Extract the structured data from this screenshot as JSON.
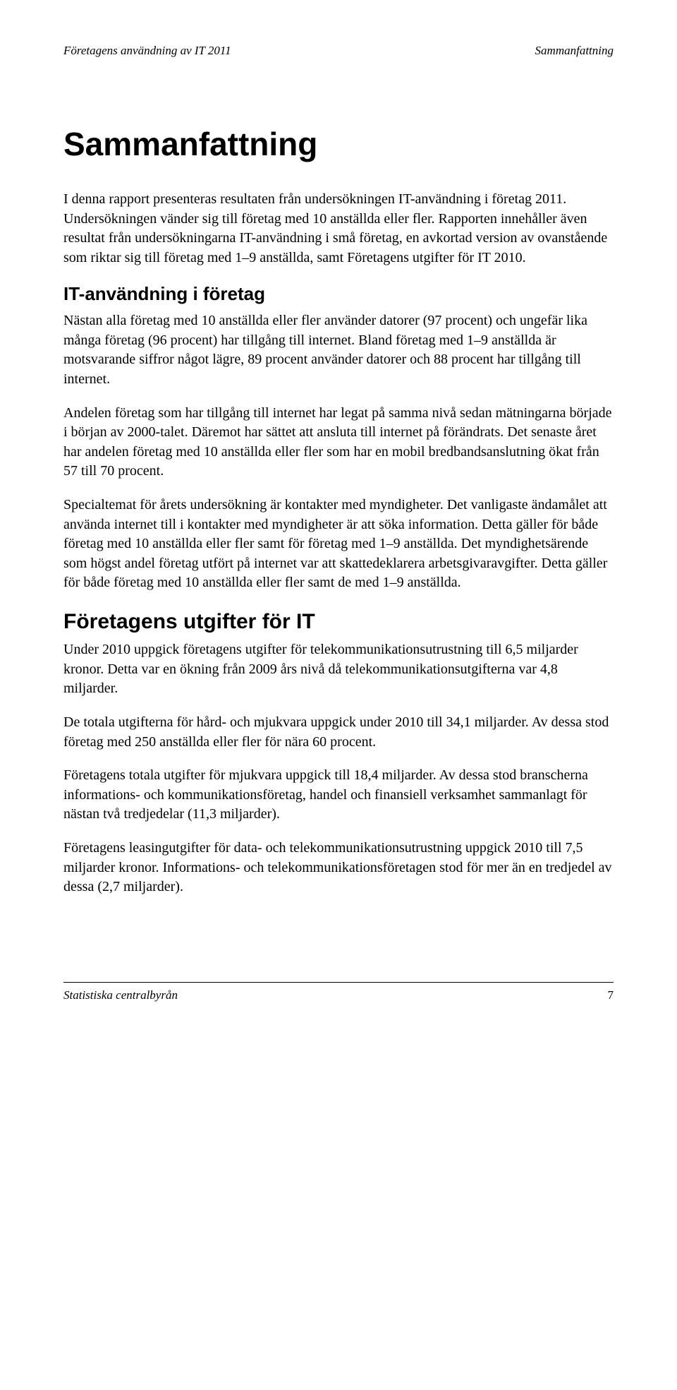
{
  "header": {
    "left": "Företagens användning av IT 2011",
    "right": "Sammanfattning"
  },
  "title": "Sammanfattning",
  "intro": "I denna rapport presenteras resultaten från undersökningen IT-användning i företag 2011. Undersökningen vänder sig till företag med 10 anställda eller fler. Rapporten innehåller även resultat från undersökningarna IT-användning i små företag, en avkortad version av ovanstående som riktar sig till företag med 1–9 anställda, samt Företagens utgifter för IT 2010.",
  "section1": {
    "heading": "IT-användning i företag",
    "p1": "Nästan alla företag med 10 anställda eller fler använder datorer (97 procent) och ungefär lika många företag (96 procent) har tillgång till internet. Bland företag med 1–9 anställda är motsvarande siffror något lägre, 89 procent använder datorer och 88 procent har tillgång till internet.",
    "p2": "Andelen företag som har tillgång till internet har legat på samma nivå sedan mätningarna började i början av 2000-talet. Däremot har sättet att ansluta till internet på förändrats. Det senaste året har andelen företag med 10 anställda eller fler som har en mobil bredbandsanslutning ökat från 57 till 70 procent.",
    "p3": "Specialtemat för årets undersökning är kontakter med myndigheter. Det vanligaste ändamålet att använda internet till i kontakter med myndigheter är att söka information. Detta gäller för både företag med 10 anställda eller fler samt för företag med 1–9 anställda. Det myndighetsärende som högst andel företag utfört på internet var att skattedeklarera arbetsgivaravgifter. Detta gäller för både företag med 10 anställda eller fler samt de med 1–9 anställda."
  },
  "section2": {
    "heading": "Företagens utgifter för IT",
    "p1": "Under 2010 uppgick företagens utgifter för telekommunikationsutrustning till 6,5 miljarder kronor. Detta var en ökning från 2009 års nivå då telekommunikationsutgifterna var 4,8 miljarder.",
    "p2": "De totala utgifterna för hård- och mjukvara uppgick under 2010 till 34,1 miljarder. Av dessa stod företag med 250 anställda eller fler för nära 60 procent.",
    "p3": "Företagens totala utgifter för mjukvara uppgick till 18,4 miljarder. Av dessa stod branscherna informations- och kommunikationsföretag, handel och finansiell verksamhet sammanlagt för nästan två tredjedelar (11,3 miljarder).",
    "p4": "Företagens leasingutgifter för data- och telekommunikationsutrustning uppgick 2010 till 7,5 miljarder kronor. Informations- och telekommunikationsföretagen stod för mer än en tredjedel av dessa (2,7 miljarder)."
  },
  "footer": {
    "source": "Statistiska centralbyrån",
    "page": "7"
  }
}
